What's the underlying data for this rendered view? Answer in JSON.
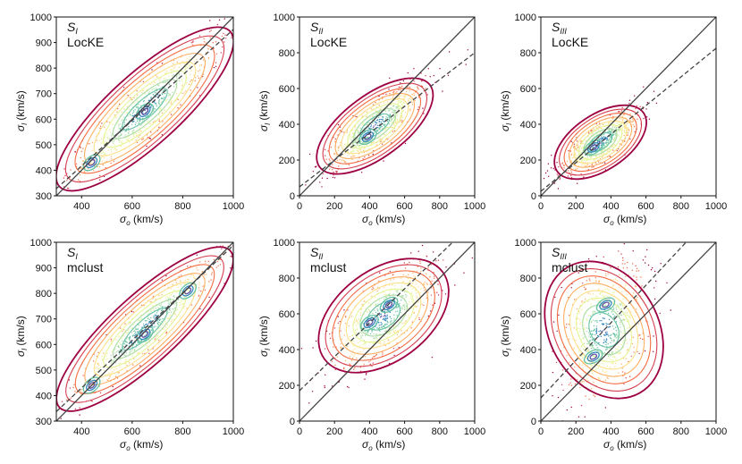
{
  "figure": {
    "background": "#ffffff"
  },
  "contour_colors": [
    "#9e0142",
    "#d53e4f",
    "#f46d43",
    "#fdae61",
    "#fee08b",
    "#e6f598",
    "#abdda4",
    "#66c2a5",
    "#3288bd",
    "#5e4fa2"
  ],
  "chart_data": [
    {
      "type": "scatter",
      "subscript": "I",
      "method": "LocKE",
      "xlabel": "σ_o (km/s)",
      "ylabel": "σ_l (km/s)",
      "xlim": [
        300,
        1000
      ],
      "ylim": [
        300,
        1000
      ],
      "xticks": [
        400,
        600,
        800,
        1000
      ],
      "yticks": [
        300,
        400,
        500,
        600,
        700,
        800,
        900,
        1000
      ],
      "identity_line": [
        [
          300,
          300
        ],
        [
          1000,
          1000
        ]
      ],
      "fit_line": {
        "slope": 0.89,
        "intercept": 61
      },
      "density_center": [
        650,
        640
      ],
      "density_spread": [
        150,
        145
      ],
      "correlation": 0.93,
      "density_peaks": [
        [
          440,
          430
        ],
        [
          650,
          630
        ]
      ]
    },
    {
      "type": "scatter",
      "subscript": "II",
      "method": "LocKE",
      "xlabel": "σ_o (km/s)",
      "ylabel": "σ_l (km/s)",
      "xlim": [
        0,
        1000
      ],
      "ylim": [
        0,
        1000
      ],
      "xticks": [
        0,
        200,
        400,
        600,
        800,
        1000
      ],
      "yticks": [
        0,
        200,
        400,
        600,
        800,
        1000
      ],
      "identity_line": [
        [
          0,
          0
        ],
        [
          1000,
          1000
        ]
      ],
      "fit_line": {
        "slope": 0.75,
        "intercept": 50
      },
      "density_center": [
        430,
        390
      ],
      "density_spread": [
        140,
        120
      ],
      "correlation": 0.85,
      "density_peaks": [
        [
          390,
          330
        ]
      ]
    },
    {
      "type": "scatter",
      "subscript": "III",
      "method": "LocKE",
      "xlabel": "σ_o (km/s)",
      "ylabel": "σ_l (km/s)",
      "xlim": [
        0,
        1000
      ],
      "ylim": [
        0,
        1000
      ],
      "xticks": [
        0,
        200,
        400,
        600,
        800,
        1000
      ],
      "yticks": [
        0,
        200,
        400,
        600,
        800,
        1000
      ],
      "identity_line": [
        [
          0,
          0
        ],
        [
          1000,
          1000
        ]
      ],
      "fit_line": {
        "slope": 0.8,
        "intercept": 25
      },
      "density_center": [
        340,
        300
      ],
      "density_spread": [
        110,
        90
      ],
      "correlation": 0.8,
      "density_peaks": [
        [
          300,
          270
        ]
      ]
    },
    {
      "type": "scatter",
      "subscript": "I",
      "method": "mclust",
      "xlabel": "σ_o (km/s)",
      "ylabel": "σ_l (km/s)",
      "xlim": [
        300,
        1000
      ],
      "ylim": [
        300,
        1000
      ],
      "xticks": [
        400,
        600,
        800,
        1000
      ],
      "yticks": [
        300,
        400,
        500,
        600,
        700,
        800,
        900,
        1000
      ],
      "identity_line": [
        [
          300,
          300
        ],
        [
          1000,
          1000
        ]
      ],
      "fit_line": {
        "slope": 0.93,
        "intercept": 58
      },
      "density_center": [
        650,
        660
      ],
      "density_spread": [
        150,
        145
      ],
      "correlation": 0.94,
      "density_peaks": [
        [
          440,
          440
        ],
        [
          650,
          640
        ],
        [
          820,
          810
        ]
      ]
    },
    {
      "type": "scatter",
      "subscript": "II",
      "method": "mclust",
      "xlabel": "σ_o (km/s)",
      "ylabel": "σ_l (km/s)",
      "xlim": [
        0,
        1000
      ],
      "ylim": [
        0,
        1000
      ],
      "xticks": [
        0,
        200,
        400,
        600,
        800,
        1000
      ],
      "yticks": [
        0,
        200,
        400,
        600,
        800,
        1000
      ],
      "identity_line": [
        [
          0,
          0
        ],
        [
          1000,
          1000
        ]
      ],
      "fit_line": {
        "slope": 0.95,
        "intercept": 170
      },
      "density_center": [
        480,
        590
      ],
      "density_spread": [
        150,
        150
      ],
      "correlation": 0.72,
      "density_peaks": [
        [
          400,
          550
        ],
        [
          510,
          650
        ]
      ]
    },
    {
      "type": "scatter",
      "subscript": "III",
      "method": "mclust",
      "xlabel": "σ_o (km/s)",
      "ylabel": "σ_l (km/s)",
      "xlim": [
        0,
        1000
      ],
      "ylim": [
        0,
        1000
      ],
      "xticks": [
        0,
        200,
        400,
        600,
        800,
        1000
      ],
      "yticks": [
        0,
        200,
        400,
        600,
        800,
        1000
      ],
      "identity_line": [
        [
          0,
          0
        ],
        [
          1000,
          1000
        ]
      ],
      "fit_line": {
        "slope": 1.05,
        "intercept": 130
      },
      "density_center": [
        360,
        510
      ],
      "density_spread": [
        120,
        190
      ],
      "correlation": 0.35,
      "density_peaks": [
        [
          370,
          650
        ],
        [
          300,
          360
        ]
      ]
    }
  ]
}
